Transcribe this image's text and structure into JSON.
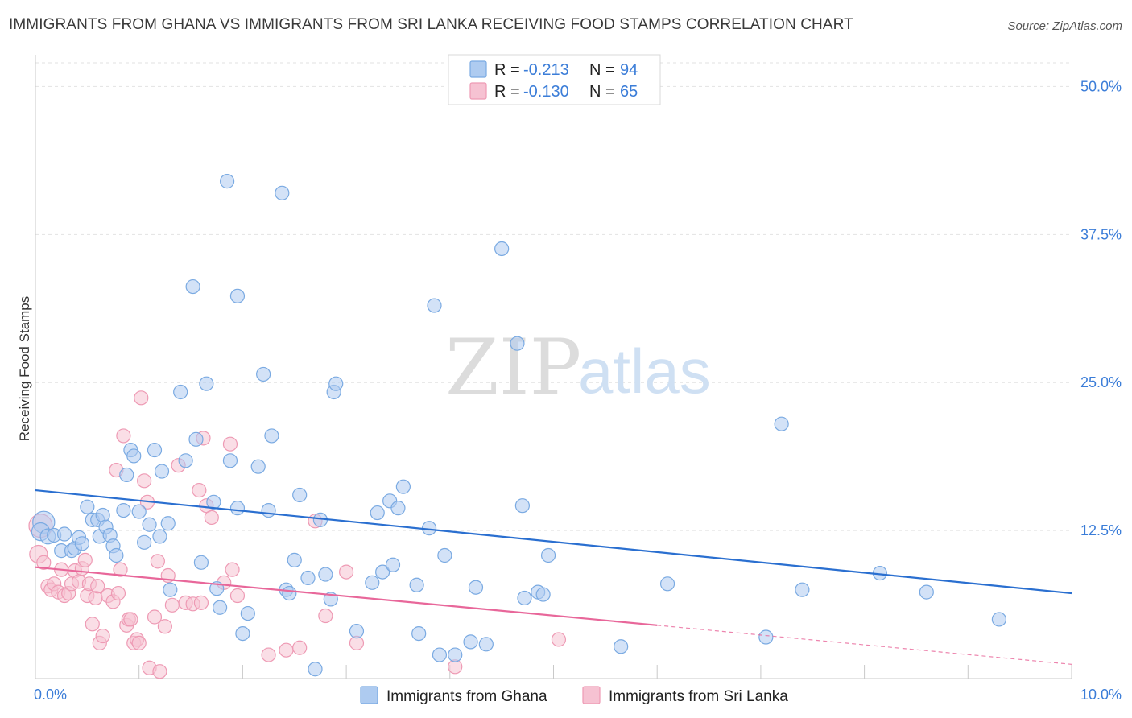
{
  "title": "IMMIGRANTS FROM GHANA VS IMMIGRANTS FROM SRI LANKA RECEIVING FOOD STAMPS CORRELATION CHART",
  "source": "Source: ZipAtlas.com",
  "watermark": {
    "zip": "ZIP",
    "atlas": "atlas"
  },
  "colors": {
    "ghana_fill": "#aecbf0",
    "ghana_stroke": "#7aaae2",
    "ghana_line": "#2a6fd0",
    "srilanka_fill": "#f6c2d2",
    "srilanka_stroke": "#ee9ab4",
    "srilanka_line": "#e8679a",
    "tick_text": "#3b7dd8"
  },
  "legend": [
    {
      "r_label": "R =",
      "r_value": "-0.213",
      "n_label": "N =",
      "n_value": "94"
    },
    {
      "r_label": "R =",
      "r_value": "-0.130",
      "n_label": "N =",
      "n_value": "65"
    }
  ],
  "chart_data": {
    "type": "scatter",
    "title": "IMMIGRANTS FROM GHANA VS IMMIGRANTS FROM SRI LANKA RECEIVING FOOD STAMPS CORRELATION CHART",
    "xlabel": "",
    "ylabel": "Receiving Food Stamps",
    "xlim": [
      0,
      10
    ],
    "ylim": [
      0,
      52
    ],
    "x_tick_labels": [
      "0.0%",
      "10.0%"
    ],
    "y_ticks": [
      12.5,
      25.0,
      37.5,
      50.0
    ],
    "y_tick_labels": [
      "12.5%",
      "25.0%",
      "37.5%",
      "50.0%"
    ],
    "grid": true,
    "series": [
      {
        "name": "Immigrants from Ghana",
        "trend": {
          "x": [
            0,
            10
          ],
          "y": [
            15.9,
            7.2
          ]
        },
        "points": [
          [
            0.08,
            13.2,
            1.6
          ],
          [
            0.05,
            12.4,
            1.3
          ],
          [
            0.12,
            12.0,
            1.1
          ],
          [
            0.18,
            12.1,
            1
          ],
          [
            0.25,
            10.8,
            1
          ],
          [
            0.28,
            12.2,
            1
          ],
          [
            0.35,
            10.8,
            1
          ],
          [
            0.38,
            11.0,
            1
          ],
          [
            0.42,
            11.9,
            1
          ],
          [
            0.45,
            11.4,
            1
          ],
          [
            0.5,
            14.5,
            1
          ],
          [
            0.55,
            13.4,
            1
          ],
          [
            0.6,
            13.4,
            1
          ],
          [
            0.62,
            12.0,
            1
          ],
          [
            0.65,
            13.8,
            1
          ],
          [
            0.68,
            12.8,
            1
          ],
          [
            0.72,
            12.1,
            1
          ],
          [
            0.75,
            11.2,
            1
          ],
          [
            0.78,
            10.4,
            1
          ],
          [
            0.85,
            14.2,
            1
          ],
          [
            0.88,
            17.2,
            1
          ],
          [
            0.92,
            19.3,
            1
          ],
          [
            0.95,
            18.8,
            1
          ],
          [
            1.0,
            14.1,
            1
          ],
          [
            1.05,
            11.5,
            1
          ],
          [
            1.1,
            13.0,
            1
          ],
          [
            1.15,
            19.3,
            1
          ],
          [
            1.2,
            12.0,
            1
          ],
          [
            1.22,
            17.5,
            1
          ],
          [
            1.28,
            13.1,
            1
          ],
          [
            1.3,
            7.5,
            1
          ],
          [
            1.4,
            24.2,
            1
          ],
          [
            1.45,
            18.4,
            1
          ],
          [
            1.52,
            33.1,
            1
          ],
          [
            1.55,
            20.2,
            1
          ],
          [
            1.6,
            9.8,
            1
          ],
          [
            1.65,
            24.9,
            1
          ],
          [
            1.72,
            14.9,
            1
          ],
          [
            1.75,
            7.6,
            1
          ],
          [
            1.78,
            6.0,
            1
          ],
          [
            1.85,
            42.0,
            1
          ],
          [
            1.88,
            18.4,
            1
          ],
          [
            1.95,
            14.4,
            1
          ],
          [
            1.95,
            32.3,
            1
          ],
          [
            2.0,
            3.8,
            1
          ],
          [
            2.05,
            5.5,
            1
          ],
          [
            2.15,
            17.9,
            1
          ],
          [
            2.2,
            25.7,
            1
          ],
          [
            2.25,
            14.2,
            1
          ],
          [
            2.28,
            20.5,
            1
          ],
          [
            2.38,
            41.0,
            1
          ],
          [
            2.42,
            7.5,
            1
          ],
          [
            2.45,
            7.2,
            1
          ],
          [
            2.5,
            10.0,
            1
          ],
          [
            2.55,
            15.5,
            1
          ],
          [
            2.63,
            8.5,
            1
          ],
          [
            2.7,
            0.8,
            1
          ],
          [
            2.75,
            13.4,
            1
          ],
          [
            2.8,
            8.8,
            1
          ],
          [
            2.85,
            6.7,
            1
          ],
          [
            2.88,
            24.2,
            1
          ],
          [
            2.9,
            24.9,
            1
          ],
          [
            3.1,
            4.0,
            1
          ],
          [
            3.25,
            8.1,
            1
          ],
          [
            3.3,
            14.0,
            1
          ],
          [
            3.35,
            9.0,
            1
          ],
          [
            3.42,
            15.0,
            1
          ],
          [
            3.45,
            9.6,
            1
          ],
          [
            3.5,
            14.4,
            1
          ],
          [
            3.55,
            16.2,
            1
          ],
          [
            3.68,
            7.9,
            1
          ],
          [
            3.7,
            3.8,
            1
          ],
          [
            3.8,
            12.7,
            1
          ],
          [
            3.85,
            31.5,
            1
          ],
          [
            3.9,
            2.0,
            1
          ],
          [
            3.95,
            10.4,
            1
          ],
          [
            4.05,
            2.0,
            1
          ],
          [
            4.2,
            3.1,
            1
          ],
          [
            4.25,
            7.7,
            1
          ],
          [
            4.35,
            2.9,
            1
          ],
          [
            4.5,
            36.3,
            1
          ],
          [
            4.65,
            28.3,
            1
          ],
          [
            4.7,
            14.6,
            1
          ],
          [
            4.72,
            6.8,
            1
          ],
          [
            4.85,
            7.3,
            1
          ],
          [
            4.9,
            7.1,
            1
          ],
          [
            4.95,
            10.4,
            1
          ],
          [
            5.65,
            2.7,
            1
          ],
          [
            6.1,
            8.0,
            1
          ],
          [
            7.05,
            3.5,
            1
          ],
          [
            7.2,
            21.5,
            1
          ],
          [
            7.4,
            7.5,
            1
          ],
          [
            8.15,
            8.9,
            1
          ],
          [
            8.6,
            7.3,
            1
          ],
          [
            9.3,
            5.0,
            1
          ]
        ]
      },
      {
        "name": "Immigrants from Sri Lanka",
        "trend": {
          "x": [
            0,
            6
          ],
          "y": [
            9.4,
            4.5
          ]
        },
        "trend_extension": {
          "x": [
            6,
            10
          ],
          "y": [
            4.5,
            1.2
          ]
        },
        "points": [
          [
            0.05,
            12.9,
            1.7
          ],
          [
            0.03,
            10.5,
            1.3
          ],
          [
            0.08,
            9.8,
            1
          ],
          [
            0.12,
            7.8,
            1
          ],
          [
            0.15,
            7.5,
            1
          ],
          [
            0.18,
            8.0,
            1
          ],
          [
            0.22,
            7.3,
            1
          ],
          [
            0.25,
            9.2,
            1
          ],
          [
            0.28,
            7.0,
            1
          ],
          [
            0.32,
            7.2,
            1
          ],
          [
            0.35,
            8.0,
            1
          ],
          [
            0.38,
            9.1,
            1
          ],
          [
            0.42,
            8.2,
            1
          ],
          [
            0.45,
            9.3,
            1
          ],
          [
            0.48,
            10.0,
            1
          ],
          [
            0.5,
            7.0,
            1
          ],
          [
            0.52,
            8.0,
            1
          ],
          [
            0.55,
            4.6,
            1
          ],
          [
            0.58,
            6.8,
            1
          ],
          [
            0.6,
            7.8,
            1
          ],
          [
            0.62,
            3.0,
            1
          ],
          [
            0.65,
            3.6,
            1
          ],
          [
            0.7,
            7.0,
            1
          ],
          [
            0.75,
            6.5,
            1
          ],
          [
            0.78,
            17.6,
            1
          ],
          [
            0.8,
            7.2,
            1
          ],
          [
            0.82,
            9.2,
            1
          ],
          [
            0.85,
            20.5,
            1
          ],
          [
            0.88,
            4.5,
            1
          ],
          [
            0.9,
            5.0,
            1
          ],
          [
            0.92,
            5.0,
            1
          ],
          [
            0.95,
            3.0,
            1
          ],
          [
            0.98,
            3.3,
            1
          ],
          [
            1.0,
            3.0,
            1
          ],
          [
            1.02,
            23.7,
            1
          ],
          [
            1.05,
            16.7,
            1
          ],
          [
            1.08,
            14.9,
            1
          ],
          [
            1.1,
            0.9,
            1
          ],
          [
            1.15,
            5.2,
            1
          ],
          [
            1.18,
            9.9,
            1
          ],
          [
            1.2,
            0.6,
            1
          ],
          [
            1.25,
            4.4,
            1
          ],
          [
            1.28,
            8.7,
            1
          ],
          [
            1.32,
            6.2,
            1
          ],
          [
            1.38,
            18.0,
            1
          ],
          [
            1.45,
            6.4,
            1
          ],
          [
            1.52,
            6.3,
            1
          ],
          [
            1.58,
            15.9,
            1
          ],
          [
            1.6,
            6.4,
            1
          ],
          [
            1.62,
            20.3,
            1
          ],
          [
            1.65,
            14.6,
            1
          ],
          [
            1.7,
            13.6,
            1
          ],
          [
            1.82,
            8.1,
            1
          ],
          [
            1.88,
            19.8,
            1
          ],
          [
            1.9,
            9.2,
            1
          ],
          [
            1.95,
            7.0,
            1
          ],
          [
            2.25,
            2.0,
            1
          ],
          [
            2.42,
            2.4,
            1
          ],
          [
            2.55,
            2.6,
            1
          ],
          [
            2.7,
            13.3,
            1
          ],
          [
            2.8,
            5.3,
            1
          ],
          [
            3.0,
            9.0,
            1
          ],
          [
            3.1,
            3.0,
            1
          ],
          [
            4.05,
            1.0,
            1
          ],
          [
            5.05,
            3.3,
            1
          ]
        ]
      }
    ]
  }
}
